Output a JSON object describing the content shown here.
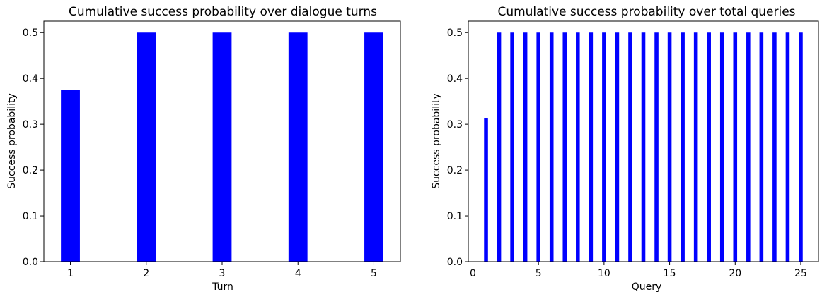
{
  "chart_data": [
    {
      "type": "bar",
      "title": "Cumulative success probability over dialogue turns",
      "xlabel": "Turn",
      "ylabel": "Success probability",
      "x": [
        1,
        2,
        3,
        4,
        5
      ],
      "values": [
        0.375,
        0.5,
        0.5,
        0.5,
        0.5
      ],
      "xlim": [
        0.65,
        5.35
      ],
      "ylim": [
        0,
        0.525
      ],
      "xticks": [
        1,
        2,
        3,
        4,
        5
      ],
      "yticks": [
        0.0,
        0.1,
        0.2,
        0.3,
        0.4,
        0.5
      ],
      "bar_width": 0.25,
      "color": "#0000ff",
      "grid": false
    },
    {
      "type": "bar",
      "title": "Cumulative success probability over total queries",
      "xlabel": "Query",
      "ylabel": "Success probability",
      "x": [
        1,
        2,
        3,
        4,
        5,
        6,
        7,
        8,
        9,
        10,
        11,
        12,
        13,
        14,
        15,
        16,
        17,
        18,
        19,
        20,
        21,
        22,
        23,
        24,
        25
      ],
      "values": [
        0.3125,
        0.5,
        0.5,
        0.5,
        0.5,
        0.5,
        0.5,
        0.5,
        0.5,
        0.5,
        0.5,
        0.5,
        0.5,
        0.5,
        0.5,
        0.5,
        0.5,
        0.5,
        0.5,
        0.5,
        0.5,
        0.5,
        0.5,
        0.5,
        0.5
      ],
      "xlim": [
        -0.35,
        26.35
      ],
      "ylim": [
        0,
        0.525
      ],
      "xticks": [
        0,
        5,
        10,
        15,
        20,
        25
      ],
      "yticks": [
        0.0,
        0.1,
        0.2,
        0.3,
        0.4,
        0.5
      ],
      "bar_width": 0.3,
      "color": "#0000ff",
      "grid": false
    }
  ]
}
